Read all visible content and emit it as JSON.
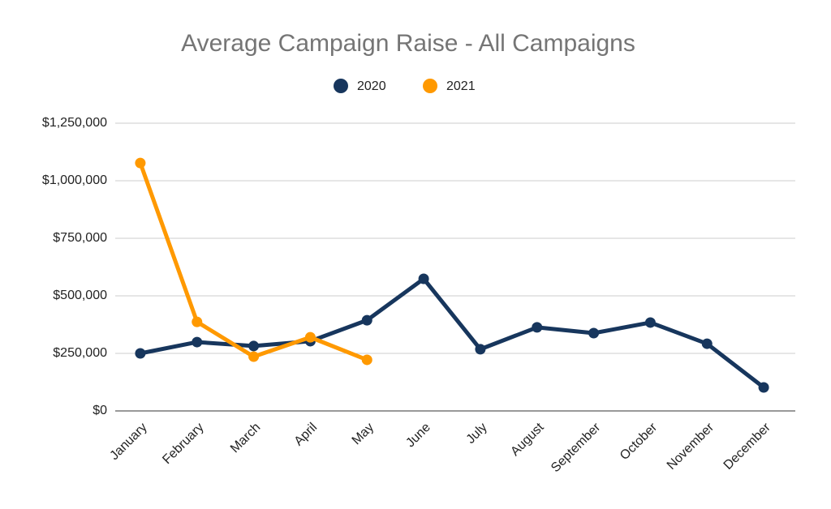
{
  "chart_data": {
    "type": "line",
    "title": "Average Campaign Raise - All Campaigns",
    "categories": [
      "January",
      "February",
      "March",
      "April",
      "May",
      "June",
      "July",
      "August",
      "September",
      "October",
      "November",
      "December"
    ],
    "series": [
      {
        "name": "2020",
        "color": "#17365d",
        "values": [
          250000,
          299000,
          282000,
          303000,
          394000,
          574000,
          268000,
          363000,
          338000,
          384000,
          292000,
          102000
        ]
      },
      {
        "name": "2021",
        "color": "#ff9900",
        "values": [
          1077000,
          387000,
          236000,
          320000,
          222000,
          null,
          null,
          null,
          null,
          null,
          null,
          null
        ]
      }
    ],
    "ylim": [
      0,
      1250000
    ],
    "yticks": [
      {
        "value": 0,
        "label": "$0"
      },
      {
        "value": 250000,
        "label": "$250,000"
      },
      {
        "value": 500000,
        "label": "$500,000"
      },
      {
        "value": 750000,
        "label": "$750,000"
      },
      {
        "value": 1000000,
        "label": "$1,000,000"
      },
      {
        "value": 1250000,
        "label": "$1,250,000"
      }
    ],
    "grid": true,
    "legend": "top"
  }
}
